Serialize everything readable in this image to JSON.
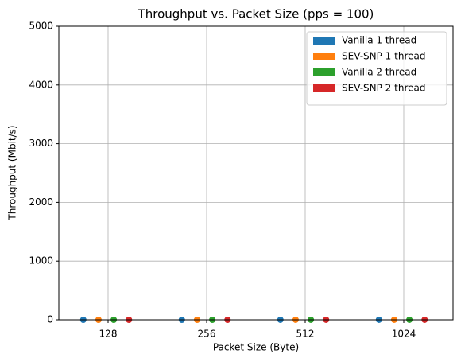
{
  "chart_data": {
    "type": "bar",
    "title": "Throughput vs. Packet Size (pps = 100)",
    "x_label": "Packet Size (Byte)",
    "y_label": "Throughput (Mbit/s)",
    "categories": [
      "128",
      "256",
      "512",
      "1024"
    ],
    "series": [
      {
        "name": "Vanilla 1 thread",
        "color": "#1f77b4",
        "values": [
          0.1,
          0.2,
          0.41,
          0.82
        ]
      },
      {
        "name": "SEV-SNP 1 thread",
        "color": "#ff7f0e",
        "values": [
          0.1,
          0.2,
          0.41,
          0.82
        ]
      },
      {
        "name": "Vanilla 2 thread",
        "color": "#2ca02c",
        "values": [
          0.1,
          0.2,
          0.41,
          0.82
        ]
      },
      {
        "name": "SEV-SNP 2 thread",
        "color": "#d62728",
        "values": [
          0.1,
          0.2,
          0.41,
          0.82
        ]
      }
    ],
    "ylim": [
      0,
      5000
    ],
    "yticks": [
      0,
      1000,
      2000,
      3000,
      4000,
      5000
    ],
    "grid": true,
    "legend": "upper right"
  }
}
